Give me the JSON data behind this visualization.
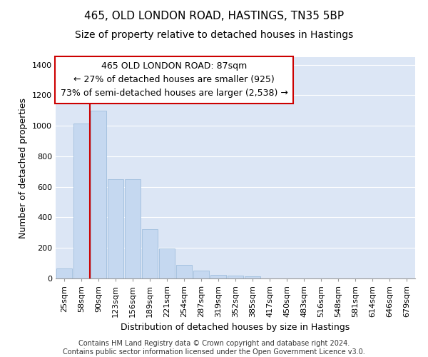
{
  "title_line1": "465, OLD LONDON ROAD, HASTINGS, TN35 5BP",
  "title_line2": "Size of property relative to detached houses in Hastings",
  "xlabel": "Distribution of detached houses by size in Hastings",
  "ylabel": "Number of detached properties",
  "categories": [
    "25sqm",
    "58sqm",
    "90sqm",
    "123sqm",
    "156sqm",
    "189sqm",
    "221sqm",
    "254sqm",
    "287sqm",
    "319sqm",
    "352sqm",
    "385sqm",
    "417sqm",
    "450sqm",
    "483sqm",
    "516sqm",
    "548sqm",
    "581sqm",
    "614sqm",
    "646sqm",
    "679sqm"
  ],
  "values": [
    65,
    1015,
    1100,
    650,
    648,
    325,
    195,
    90,
    50,
    22,
    20,
    12,
    0,
    0,
    0,
    0,
    0,
    0,
    0,
    0,
    0
  ],
  "bar_color": "#c5d8f0",
  "bar_edge_color": "#a0bedd",
  "background_color": "#dce6f5",
  "grid_color": "#ffffff",
  "annotation_line1": "465 OLD LONDON ROAD: 87sqm",
  "annotation_line2": "← 27% of detached houses are smaller (925)",
  "annotation_line3": "73% of semi-detached houses are larger (2,538) →",
  "annotation_box_color": "#ffffff",
  "annotation_box_edge_color": "#cc0000",
  "vline_color": "#cc0000",
  "vline_x": 2.0,
  "ylim": [
    0,
    1450
  ],
  "yticks": [
    0,
    200,
    400,
    600,
    800,
    1000,
    1200,
    1400
  ],
  "footer_text": "Contains HM Land Registry data © Crown copyright and database right 2024.\nContains public sector information licensed under the Open Government Licence v3.0.",
  "title_fontsize": 11,
  "subtitle_fontsize": 10,
  "xlabel_fontsize": 9,
  "ylabel_fontsize": 9,
  "tick_fontsize": 8,
  "annotation_fontsize": 9,
  "footer_fontsize": 7
}
